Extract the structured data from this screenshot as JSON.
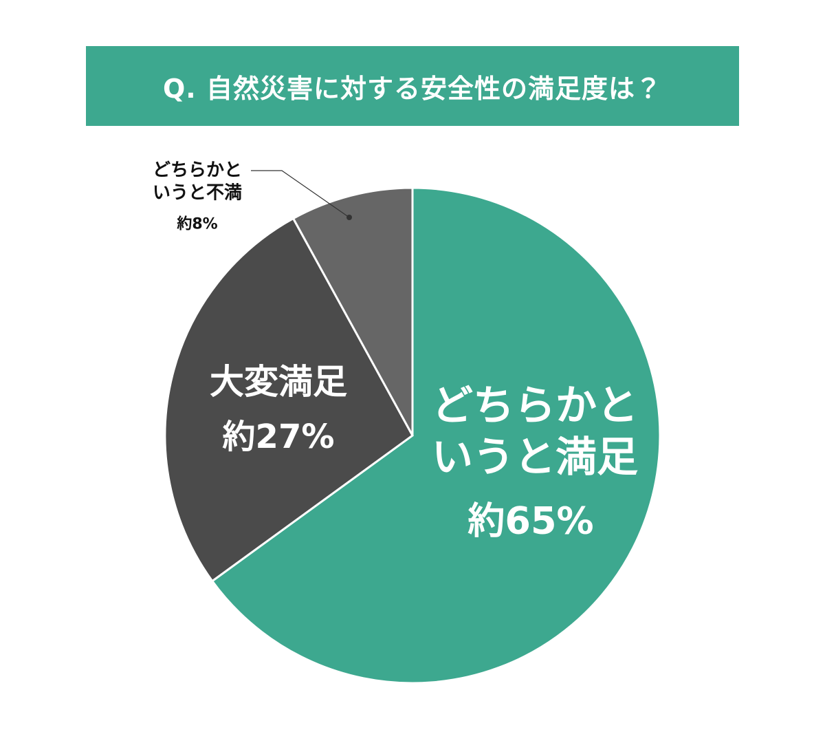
{
  "chart_data": {
    "type": "pie",
    "title": "Q. 自然災害に対する安全性の満足度は？",
    "title_color": "#3da88f",
    "categories": [
      "どちらかと\nいうと満足",
      "大変満足",
      "どちらかと\nいうと不満"
    ],
    "values": [
      65,
      27,
      8
    ],
    "value_labels": [
      "約65%",
      "約27%",
      "約8%"
    ],
    "colors": [
      "#3da88f",
      "#4b4b4b",
      "#666666"
    ]
  }
}
